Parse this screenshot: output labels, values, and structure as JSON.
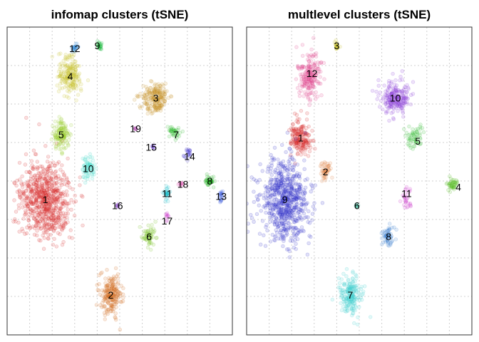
{
  "chart_data": [
    {
      "type": "scatter",
      "title": "infomap clusters (tSNE)",
      "xlabel": "",
      "ylabel": "",
      "grid": true,
      "point_alpha": 0.15,
      "clusters": [
        {
          "label": "1",
          "color": "#d62728",
          "center": [
            0.17,
            0.56
          ],
          "spread": [
            0.1,
            0.115
          ],
          "n": 700,
          "label_pos": [
            0.17,
            0.56
          ]
        },
        {
          "label": "2",
          "color": "#d2691e",
          "center": [
            0.46,
            0.87
          ],
          "spread": [
            0.045,
            0.06
          ],
          "n": 200,
          "label_pos": [
            0.46,
            0.87
          ]
        },
        {
          "label": "3",
          "color": "#c8962e",
          "center": [
            0.66,
            0.23
          ],
          "spread": [
            0.055,
            0.045
          ],
          "n": 220,
          "label_pos": [
            0.66,
            0.23
          ]
        },
        {
          "label": "4",
          "color": "#c9c430",
          "center": [
            0.28,
            0.16
          ],
          "spread": [
            0.045,
            0.055
          ],
          "n": 200,
          "label_pos": [
            0.28,
            0.16
          ]
        },
        {
          "label": "5",
          "color": "#9acd32",
          "center": [
            0.24,
            0.35
          ],
          "spread": [
            0.035,
            0.045
          ],
          "n": 140,
          "label_pos": [
            0.24,
            0.35
          ]
        },
        {
          "label": "6",
          "color": "#7cc52a",
          "center": [
            0.63,
            0.68
          ],
          "spread": [
            0.025,
            0.03
          ],
          "n": 60,
          "label_pos": [
            0.63,
            0.68
          ]
        },
        {
          "label": "7",
          "color": "#33bb33",
          "center": [
            0.74,
            0.34
          ],
          "spread": [
            0.025,
            0.02
          ],
          "n": 40,
          "label_pos": [
            0.75,
            0.35
          ]
        },
        {
          "label": "8",
          "color": "#22b022",
          "center": [
            0.9,
            0.5
          ],
          "spread": [
            0.02,
            0.015
          ],
          "n": 40,
          "label_pos": [
            0.9,
            0.5
          ]
        },
        {
          "label": "9",
          "color": "#22bb44",
          "center": [
            0.41,
            0.06
          ],
          "spread": [
            0.01,
            0.012
          ],
          "n": 25,
          "label_pos": [
            0.4,
            0.06
          ]
        },
        {
          "label": "10",
          "color": "#40d9c9",
          "center": [
            0.36,
            0.46
          ],
          "spread": [
            0.025,
            0.035
          ],
          "n": 70,
          "label_pos": [
            0.36,
            0.46
          ]
        },
        {
          "label": "11",
          "color": "#22c3d0",
          "center": [
            0.71,
            0.54
          ],
          "spread": [
            0.012,
            0.02
          ],
          "n": 30,
          "label_pos": [
            0.71,
            0.54
          ]
        },
        {
          "label": "12",
          "color": "#3d8fd6",
          "center": [
            0.3,
            0.07
          ],
          "spread": [
            0.012,
            0.012
          ],
          "n": 25,
          "label_pos": [
            0.3,
            0.07
          ]
        },
        {
          "label": "13",
          "color": "#3355dd",
          "center": [
            0.95,
            0.55
          ],
          "spread": [
            0.008,
            0.02
          ],
          "n": 20,
          "label_pos": [
            0.95,
            0.55
          ]
        },
        {
          "label": "14",
          "color": "#4433cc",
          "center": [
            0.8,
            0.41
          ],
          "spread": [
            0.015,
            0.015
          ],
          "n": 20,
          "label_pos": [
            0.81,
            0.42
          ]
        },
        {
          "label": "15",
          "color": "#6a3fd3",
          "center": [
            0.65,
            0.39
          ],
          "spread": [
            0.006,
            0.006
          ],
          "n": 8,
          "label_pos": [
            0.64,
            0.39
          ]
        },
        {
          "label": "16",
          "color": "#8844cc",
          "center": [
            0.49,
            0.58
          ],
          "spread": [
            0.006,
            0.006
          ],
          "n": 8,
          "label_pos": [
            0.49,
            0.58
          ]
        },
        {
          "label": "17",
          "color": "#cc33cc",
          "center": [
            0.71,
            0.62
          ],
          "spread": [
            0.006,
            0.012
          ],
          "n": 10,
          "label_pos": [
            0.71,
            0.63
          ]
        },
        {
          "label": "18",
          "color": "#e050b0",
          "center": [
            0.77,
            0.51
          ],
          "spread": [
            0.01,
            0.008
          ],
          "n": 10,
          "label_pos": [
            0.78,
            0.51
          ]
        },
        {
          "label": "19",
          "color": "#aa33aa",
          "center": [
            0.57,
            0.33
          ],
          "spread": [
            0.005,
            0.005
          ],
          "n": 6,
          "label_pos": [
            0.57,
            0.33
          ]
        }
      ]
    },
    {
      "type": "scatter",
      "title": "multlevel clusters (tSNE)",
      "xlabel": "",
      "ylabel": "",
      "grid": true,
      "point_alpha": 0.15,
      "clusters": [
        {
          "label": "1",
          "color": "#d62728",
          "center": [
            0.24,
            0.36
          ],
          "spread": [
            0.04,
            0.055
          ],
          "n": 180,
          "label_pos": [
            0.24,
            0.36
          ]
        },
        {
          "label": "2",
          "color": "#e08040",
          "center": [
            0.35,
            0.47
          ],
          "spread": [
            0.022,
            0.03
          ],
          "n": 50,
          "label_pos": [
            0.35,
            0.47
          ]
        },
        {
          "label": "3",
          "color": "#c9c430",
          "center": [
            0.4,
            0.06
          ],
          "spread": [
            0.01,
            0.012
          ],
          "n": 25,
          "label_pos": [
            0.4,
            0.06
          ]
        },
        {
          "label": "4",
          "color": "#55bb22",
          "center": [
            0.91,
            0.51
          ],
          "spread": [
            0.03,
            0.02
          ],
          "n": 45,
          "label_pos": [
            0.94,
            0.52
          ]
        },
        {
          "label": "5",
          "color": "#33bb33",
          "center": [
            0.75,
            0.36
          ],
          "spread": [
            0.035,
            0.03
          ],
          "n": 60,
          "label_pos": [
            0.76,
            0.37
          ]
        },
        {
          "label": "6",
          "color": "#22aa88",
          "center": [
            0.49,
            0.58
          ],
          "spread": [
            0.006,
            0.006
          ],
          "n": 8,
          "label_pos": [
            0.49,
            0.58
          ]
        },
        {
          "label": "7",
          "color": "#40d0d0",
          "center": [
            0.46,
            0.87
          ],
          "spread": [
            0.045,
            0.06
          ],
          "n": 200,
          "label_pos": [
            0.46,
            0.87
          ]
        },
        {
          "label": "8",
          "color": "#3d80d0",
          "center": [
            0.63,
            0.68
          ],
          "spread": [
            0.025,
            0.03
          ],
          "n": 60,
          "label_pos": [
            0.63,
            0.68
          ]
        },
        {
          "label": "9",
          "color": "#3333cc",
          "center": [
            0.17,
            0.56
          ],
          "spread": [
            0.1,
            0.115
          ],
          "n": 700,
          "label_pos": [
            0.17,
            0.56
          ]
        },
        {
          "label": "10",
          "color": "#8a3fd9",
          "center": [
            0.66,
            0.23
          ],
          "spread": [
            0.055,
            0.045
          ],
          "n": 220,
          "label_pos": [
            0.66,
            0.23
          ]
        },
        {
          "label": "11",
          "color": "#cc33cc",
          "center": [
            0.71,
            0.56
          ],
          "spread": [
            0.02,
            0.03
          ],
          "n": 30,
          "label_pos": [
            0.71,
            0.54
          ]
        },
        {
          "label": "12",
          "color": "#e0408a",
          "center": [
            0.28,
            0.16
          ],
          "spread": [
            0.045,
            0.07
          ],
          "n": 200,
          "label_pos": [
            0.29,
            0.15
          ]
        }
      ]
    }
  ]
}
